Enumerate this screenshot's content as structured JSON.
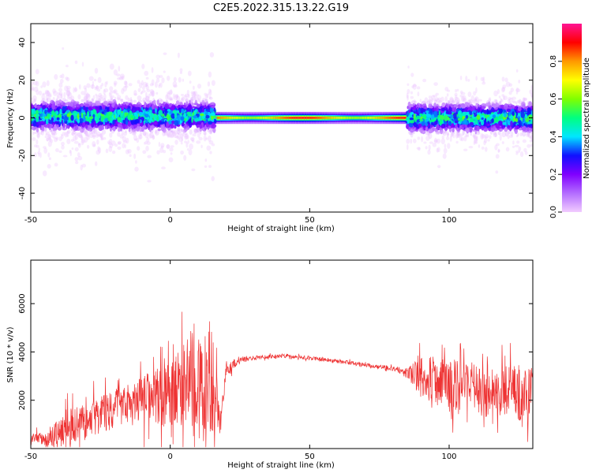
{
  "figure_title": "C2E5.2022.315.13.22.G19",
  "chart_data": [
    {
      "type": "heatmap",
      "title": "",
      "xlabel": "Height of straight line (km)",
      "ylabel": "Frequency (Hz)",
      "xlim": [
        -50,
        130
      ],
      "ylim": [
        -50,
        50
      ],
      "x_ticks": [
        -50,
        0,
        50,
        100
      ],
      "y_ticks": [
        -40,
        -20,
        0,
        20,
        40
      ],
      "grid": false,
      "colorbar": {
        "label": "Normalized spectral amplitude",
        "range": [
          0,
          1
        ],
        "ticks": [
          0.0,
          0.2,
          0.4,
          0.6,
          0.8
        ],
        "tick_labels": [
          "0.0",
          "0.2",
          "0.4",
          "0.6",
          "0.8"
        ],
        "colors": [
          "#f2ccff",
          "#b36cff",
          "#8000ff",
          "#1010ff",
          "#00e6ff",
          "#00ff80",
          "#80ff00",
          "#ffff00",
          "#ff9900",
          "#ff0000",
          "#ff1493"
        ]
      },
      "regions": [
        {
          "x": [
            -50,
            16
          ],
          "center_hz": 1,
          "spread_hz": 6,
          "outlier_spread_hz": 22,
          "peak_amplitude": 0.5,
          "pattern": "noisy"
        },
        {
          "x": [
            16,
            85
          ],
          "center_hz": 0,
          "spread_hz": 1.5,
          "peak_amplitude": 1.0,
          "pattern": "coherent-line"
        },
        {
          "x": [
            85,
            130
          ],
          "center_hz": 0,
          "spread_hz": 6,
          "outlier_spread_hz": 16,
          "peak_amplitude": 0.5,
          "pattern": "noisy"
        }
      ]
    },
    {
      "type": "line",
      "title": "",
      "xlabel": "Height of straight line (km)",
      "ylabel": "SNR (10 * v/v)",
      "xlim": [
        -50,
        130
      ],
      "ylim": [
        0,
        7800
      ],
      "x_ticks": [
        -50,
        0,
        50,
        100
      ],
      "y_ticks": [
        2000,
        4000,
        6000
      ],
      "color": "#ee3333",
      "grid": false,
      "series": [
        {
          "name": "",
          "x": [
            -50,
            -45,
            -40,
            -35,
            -30,
            -25,
            -20,
            -15,
            -10,
            -5,
            0,
            5,
            8,
            10,
            15,
            18,
            20,
            25,
            30,
            35,
            40,
            45,
            50,
            55,
            60,
            65,
            70,
            75,
            80,
            85,
            90,
            95,
            100,
            105,
            110,
            115,
            120,
            125,
            130
          ],
          "y": [
            500,
            350,
            700,
            1000,
            1200,
            1400,
            1650,
            1800,
            2000,
            2100,
            2300,
            2600,
            3100,
            2800,
            2900,
            1000,
            3300,
            3650,
            3750,
            3800,
            3850,
            3800,
            3750,
            3700,
            3600,
            3550,
            3450,
            3400,
            3300,
            3150,
            2900,
            2800,
            2600,
            2500,
            2450,
            2400,
            2400,
            2350,
            2400
          ],
          "noise": [
            300,
            300,
            900,
            1000,
            1000,
            1000,
            1000,
            1100,
            1300,
            1500,
            1800,
            2200,
            3000,
            2500,
            2800,
            600,
            400,
            150,
            120,
            100,
            100,
            100,
            100,
            100,
            100,
            100,
            100,
            110,
            120,
            300,
            1100,
            1300,
            1400,
            1400,
            1400,
            1400,
            1400,
            1500,
            1500
          ]
        }
      ]
    }
  ]
}
